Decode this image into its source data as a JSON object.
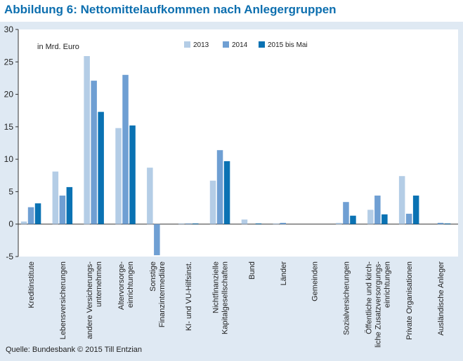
{
  "title": "Abbildung 6: Nettomittelaufkommen nach Anlegergruppen",
  "source": "Quelle: Bundesbank © 2015 Till Entzian",
  "colors": {
    "title": "#0d6faf",
    "panel_background": "#dfe9f3",
    "plot_background": "#ffffff",
    "series": [
      "#b4cde6",
      "#6f9fd3",
      "#0a72b3"
    ]
  },
  "chart_data": {
    "type": "bar",
    "unit_note": "in Mrd. Euro",
    "ylim": [
      -5,
      30
    ],
    "yticks": [
      "-5",
      "0",
      "5",
      "10",
      "15",
      "20",
      "25",
      "30"
    ],
    "grid": false,
    "legend_position": "top-center",
    "categories": [
      [
        "Kreditinstitute"
      ],
      [
        "Lebensversicherungen"
      ],
      [
        "andere Versicherungs-",
        "unternehmen"
      ],
      [
        "Altervorsorge-",
        "einrichtungen"
      ],
      [
        "Sonstige",
        "Finanzintermediäre"
      ],
      [
        "KI- und VU-Hilfsinst."
      ],
      [
        "Nichtfinanzielle",
        "Kapitalgesellschaften"
      ],
      [
        "Bund"
      ],
      [
        "Länder"
      ],
      [
        "Gemeinden"
      ],
      [
        "Sozialversicherungen"
      ],
      [
        "Öffentliche und kirch-",
        "liche Zusatzversorgungs-",
        "einrichtungen"
      ],
      [
        "Private Organisationen"
      ],
      [
        "Ausländische Anleger"
      ]
    ],
    "series": [
      {
        "name": "2013",
        "values": [
          0.4,
          8.1,
          25.9,
          14.8,
          8.7,
          0.1,
          6.7,
          0.7,
          0.1,
          0.0,
          0.2,
          2.2,
          7.4,
          0.0
        ]
      },
      {
        "name": "2014",
        "values": [
          2.6,
          4.4,
          22.1,
          23.0,
          -4.8,
          0.1,
          11.4,
          0.0,
          0.2,
          0.0,
          3.4,
          4.4,
          1.6,
          0.2
        ]
      },
      {
        "name": "2015 bis Mai",
        "values": [
          3.2,
          5.7,
          17.3,
          15.2,
          0.0,
          0.1,
          9.7,
          0.1,
          0.0,
          0.0,
          1.3,
          1.5,
          4.4,
          0.1
        ]
      }
    ]
  }
}
